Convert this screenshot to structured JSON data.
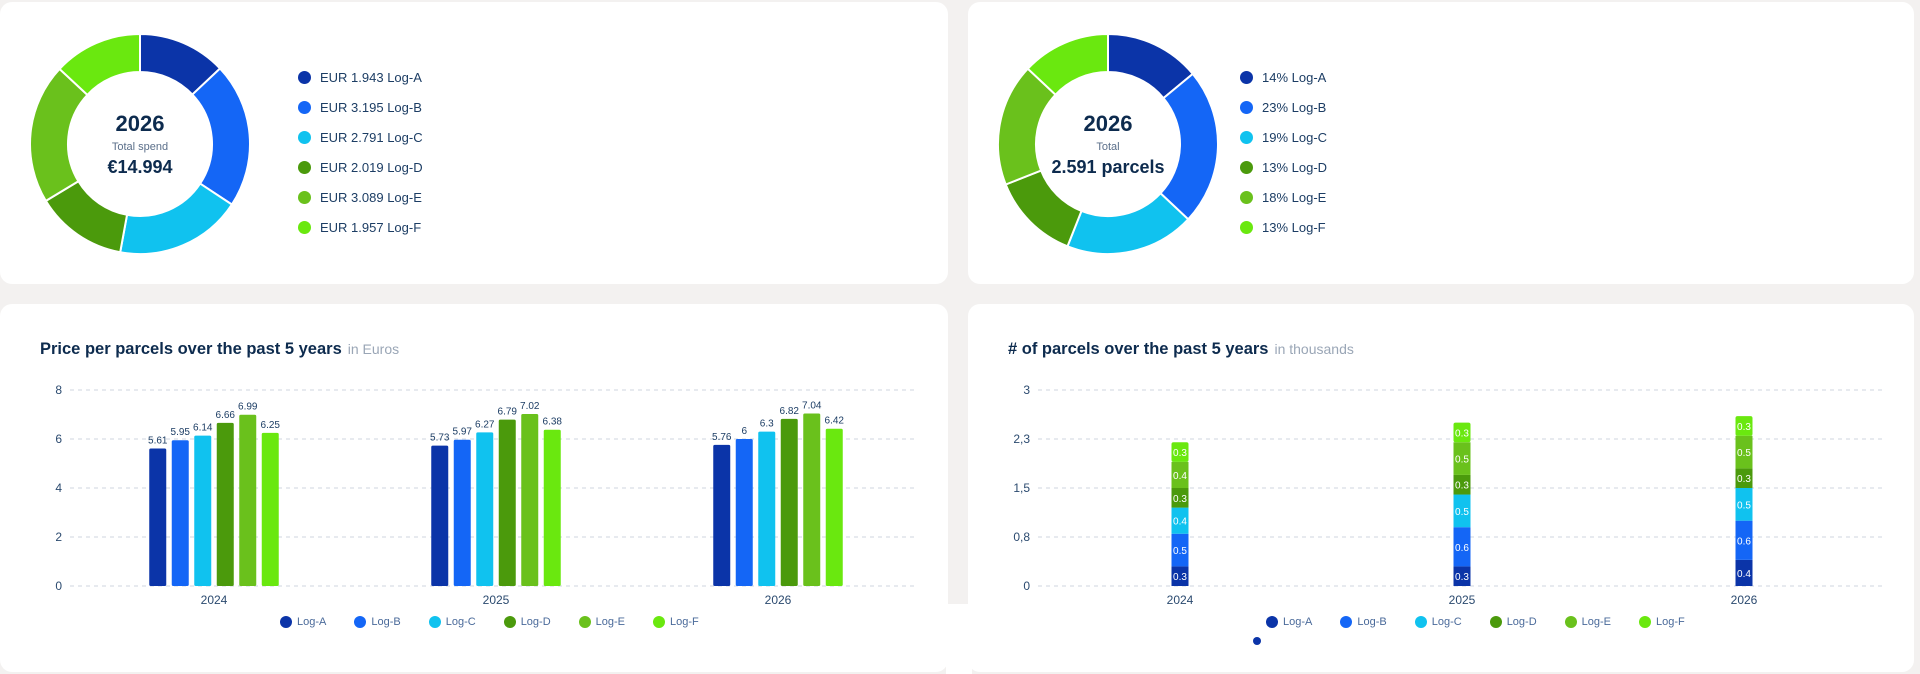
{
  "colors": {
    "Log-A": "#0b34a8",
    "Log-B": "#1466f6",
    "Log-C": "#10c2ef",
    "Log-D": "#4b9a0c",
    "Log-E": "#6ac11c",
    "Log-F": "#6ae80f"
  },
  "spend_card": {
    "year": "2026",
    "label": "Total spend",
    "value": "€14.994",
    "legend": [
      "EUR 1.943 Log-A",
      "EUR 3.195 Log-B",
      "EUR 2.791 Log-C",
      "EUR 2.019 Log-D",
      "EUR 3.089 Log-E",
      "EUR 1.957 Log-F"
    ]
  },
  "parcels_card": {
    "year": "2026",
    "label": "Total",
    "value": "2.591 parcels",
    "legend": [
      "14% Log-A",
      "23% Log-B",
      "19% Log-C",
      "13% Log-D",
      "18% Log-E",
      "13% Log-F"
    ]
  },
  "price_card": {
    "title": "Price per parcels over the past 5 years",
    "subtitle": "in Euros"
  },
  "count_card": {
    "title": "# of parcels over the past 5 years",
    "subtitle": "in thousands"
  },
  "chart_data": [
    {
      "type": "pie",
      "title": "",
      "categories": [
        "Log-A",
        "Log-B",
        "Log-C",
        "Log-D",
        "Log-E",
        "Log-F"
      ],
      "values": [
        1943,
        3195,
        2791,
        2019,
        3089,
        1957
      ]
    },
    {
      "type": "pie",
      "title": "",
      "categories": [
        "Log-A",
        "Log-B",
        "Log-C",
        "Log-D",
        "Log-E",
        "Log-F"
      ],
      "values": [
        14,
        23,
        19,
        13,
        18,
        13
      ]
    },
    {
      "type": "bar",
      "title": "Price per parcels over the past 5 years",
      "subtitle": "in Euros",
      "categories": [
        "2024",
        "2025",
        "2026"
      ],
      "ylim": [
        0,
        8
      ],
      "yticks": [
        "0",
        "2",
        "4",
        "6",
        "8"
      ],
      "ytick_values": [
        0,
        2,
        4,
        6,
        8
      ],
      "grid": true,
      "legend": "bottom",
      "series": [
        {
          "name": "Log-A",
          "values": [
            5.61,
            5.73,
            5.76
          ],
          "labels": [
            "5.61",
            "5.73",
            "5.76"
          ]
        },
        {
          "name": "Log-B",
          "values": [
            5.95,
            5.97,
            6
          ],
          "labels": [
            "5.95",
            "5.97",
            "6"
          ]
        },
        {
          "name": "Log-C",
          "values": [
            6.14,
            6.27,
            6.3
          ],
          "labels": [
            "6.14",
            "6.27",
            "6.3"
          ]
        },
        {
          "name": "Log-D",
          "values": [
            6.66,
            6.79,
            6.82
          ],
          "labels": [
            "6.66",
            "6.79",
            "6.82"
          ]
        },
        {
          "name": "Log-E",
          "values": [
            6.99,
            7.02,
            7.04
          ],
          "labels": [
            "6.99",
            "7.02",
            "7.04"
          ]
        },
        {
          "name": "Log-F",
          "values": [
            6.25,
            6.38,
            6.42
          ],
          "labels": [
            "6.25",
            "6.38",
            "6.42"
          ]
        }
      ]
    },
    {
      "type": "bar",
      "stacked": true,
      "title": "# of parcels over the past 5 years",
      "subtitle": "in thousands",
      "categories": [
        "2024",
        "2025",
        "2026"
      ],
      "ylim": [
        0,
        3
      ],
      "yticks": [
        "0",
        "0,8",
        "1,5",
        "2,3",
        "3"
      ],
      "ytick_values": [
        0,
        0.75,
        1.5,
        2.25,
        3
      ],
      "grid": true,
      "legend": "bottom",
      "series": [
        {
          "name": "Log-A",
          "values": [
            0.3,
            0.3,
            0.4
          ],
          "labels": [
            "0.3",
            "0.3",
            "0.4"
          ]
        },
        {
          "name": "Log-B",
          "values": [
            0.5,
            0.6,
            0.6
          ],
          "labels": [
            "0.5",
            "0.6",
            "0.6"
          ]
        },
        {
          "name": "Log-C",
          "values": [
            0.4,
            0.5,
            0.5
          ],
          "labels": [
            "0.4",
            "0.5",
            "0.5"
          ]
        },
        {
          "name": "Log-D",
          "values": [
            0.3,
            0.3,
            0.3
          ],
          "labels": [
            "0.3",
            "0.3",
            "0.3"
          ]
        },
        {
          "name": "Log-E",
          "values": [
            0.4,
            0.5,
            0.5
          ],
          "labels": [
            "0.4",
            "0.5",
            "0.5"
          ]
        },
        {
          "name": "Log-F",
          "values": [
            0.3,
            0.3,
            0.3
          ],
          "labels": [
            "0.3",
            "0.3",
            "0.3"
          ]
        }
      ]
    }
  ]
}
